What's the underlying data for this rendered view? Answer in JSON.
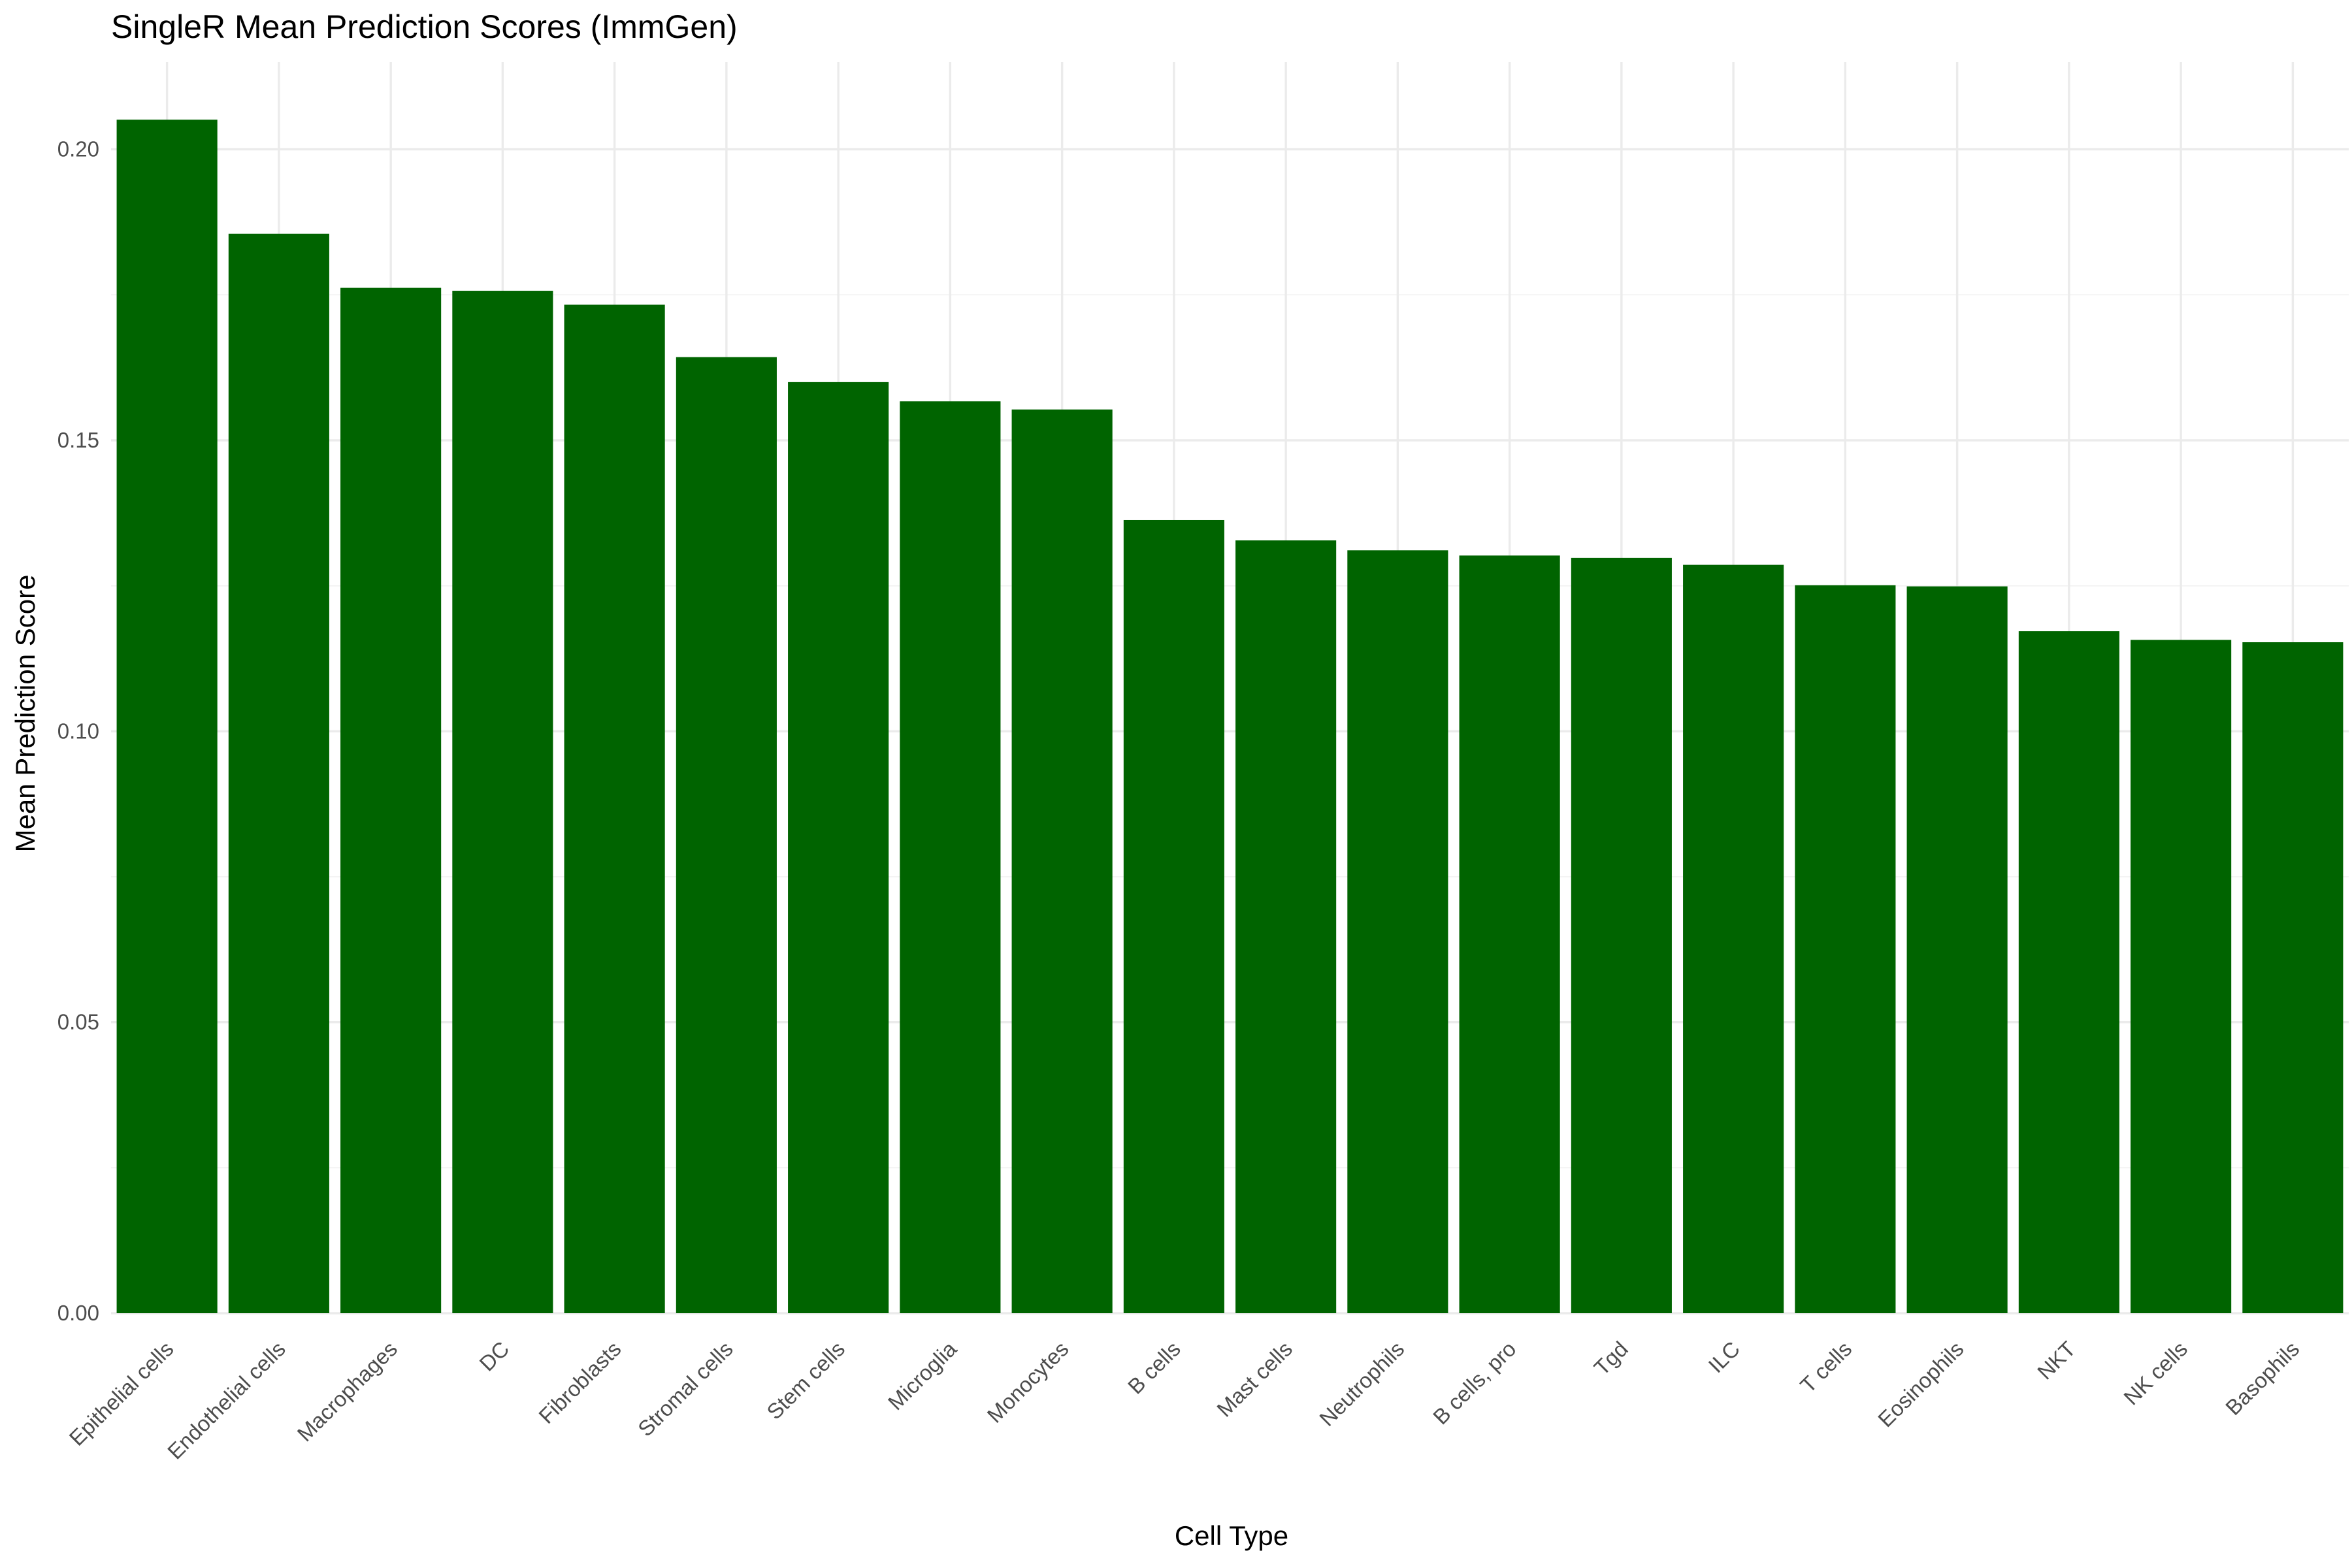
{
  "chart_data": {
    "type": "bar",
    "title": "SingleR Mean Prediction Scores (ImmGen)",
    "xlabel": "Cell Type",
    "ylabel": "Mean Prediction Score",
    "categories": [
      "Epithelial cells",
      "Endothelial cells",
      "Macrophages",
      "DC",
      "Fibroblasts",
      "Stromal cells",
      "Stem cells",
      "Microglia",
      "Monocytes",
      "B cells",
      "Mast cells",
      "Neutrophils",
      "B cells, pro",
      "Tgd",
      "ILC",
      "T cells",
      "Eosinophils",
      "NKT",
      "NK cells",
      "Basophils"
    ],
    "values": [
      0.2051,
      0.1855,
      0.1762,
      0.1757,
      0.1733,
      0.1643,
      0.16,
      0.1567,
      0.1553,
      0.1363,
      0.1328,
      0.1311,
      0.1302,
      0.1298,
      0.1286,
      0.1251,
      0.1249,
      0.1172,
      0.1157,
      0.1153
    ],
    "ylim": [
      0,
      0.215
    ],
    "yticks": [
      0.0,
      0.05,
      0.1,
      0.15,
      0.2
    ],
    "ytick_labels": [
      "0.00",
      "0.05",
      "0.10",
      "0.15",
      "0.20"
    ],
    "bar_color": "#006400",
    "grid": true,
    "legend": "none"
  }
}
